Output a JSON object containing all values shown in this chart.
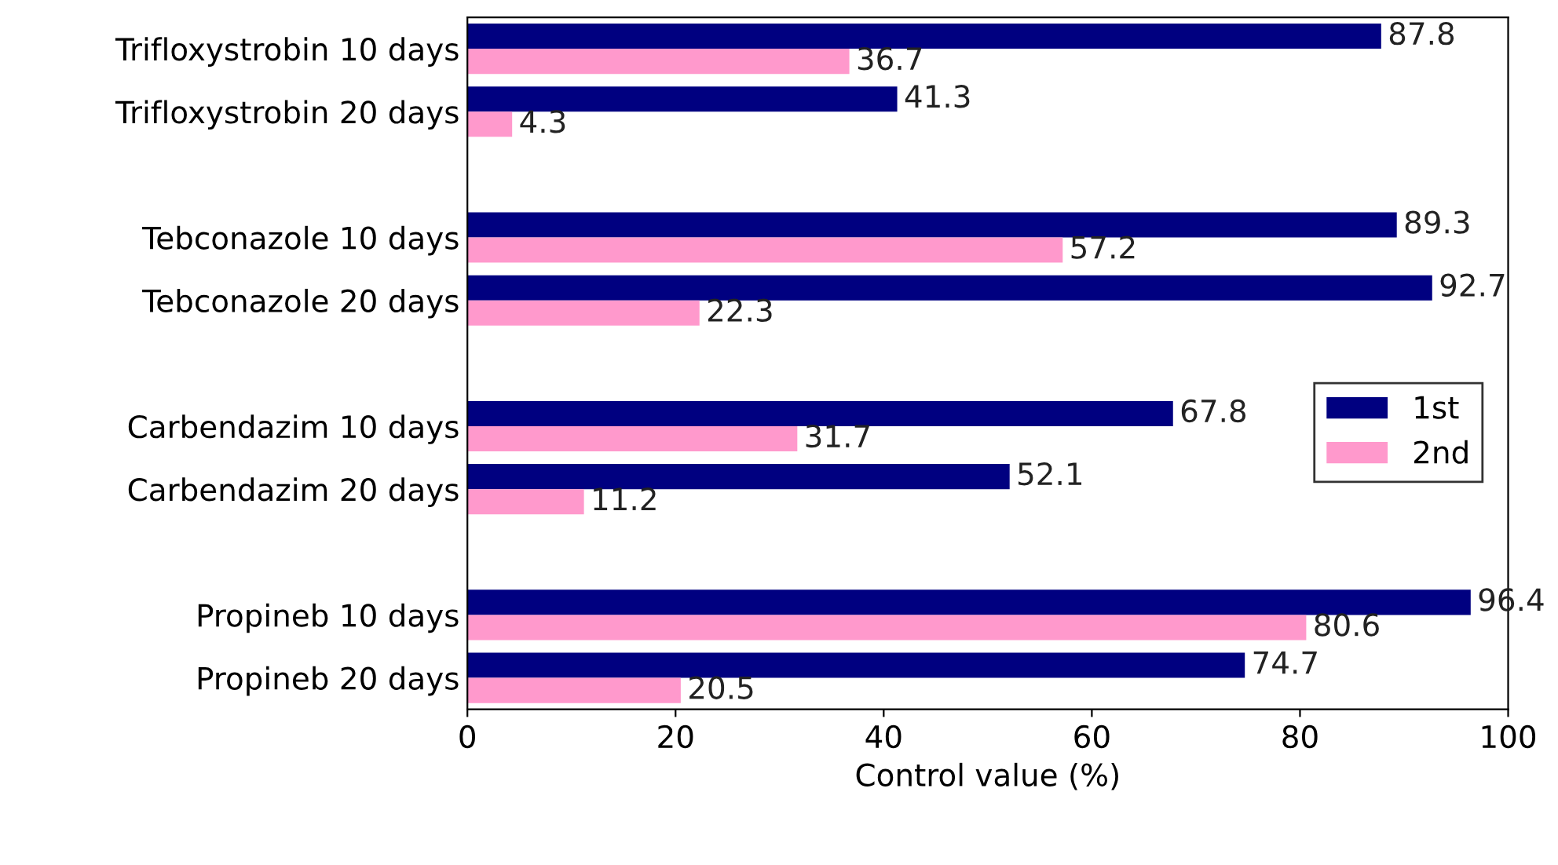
{
  "chart_data": {
    "type": "bar",
    "orientation": "horizontal",
    "xlabel": "Control value (%)",
    "categories": [
      "Trifloxystrobin 10 days",
      "Trifloxystrobin 20 days",
      null,
      "Tebconazole 10 days",
      "Tebconazole 20 days",
      null,
      "Carbendazim 10 days",
      "Carbendazim 20 days",
      null,
      "Propineb 10 days",
      "Propineb 20 days"
    ],
    "series": [
      {
        "name": "1st",
        "color": "#000080",
        "values": [
          87.8,
          41.3,
          null,
          89.3,
          92.7,
          null,
          67.8,
          52.1,
          null,
          96.4,
          74.7
        ]
      },
      {
        "name": "2nd",
        "color": "#ff99cc",
        "values": [
          36.7,
          4.3,
          null,
          57.2,
          22.3,
          null,
          31.7,
          11.2,
          null,
          80.6,
          20.5
        ]
      }
    ],
    "xlim": [
      0,
      100
    ],
    "xticks": [
      0,
      20,
      40,
      60,
      80,
      100
    ],
    "grid": false,
    "legend": "right",
    "data_labels": true
  }
}
